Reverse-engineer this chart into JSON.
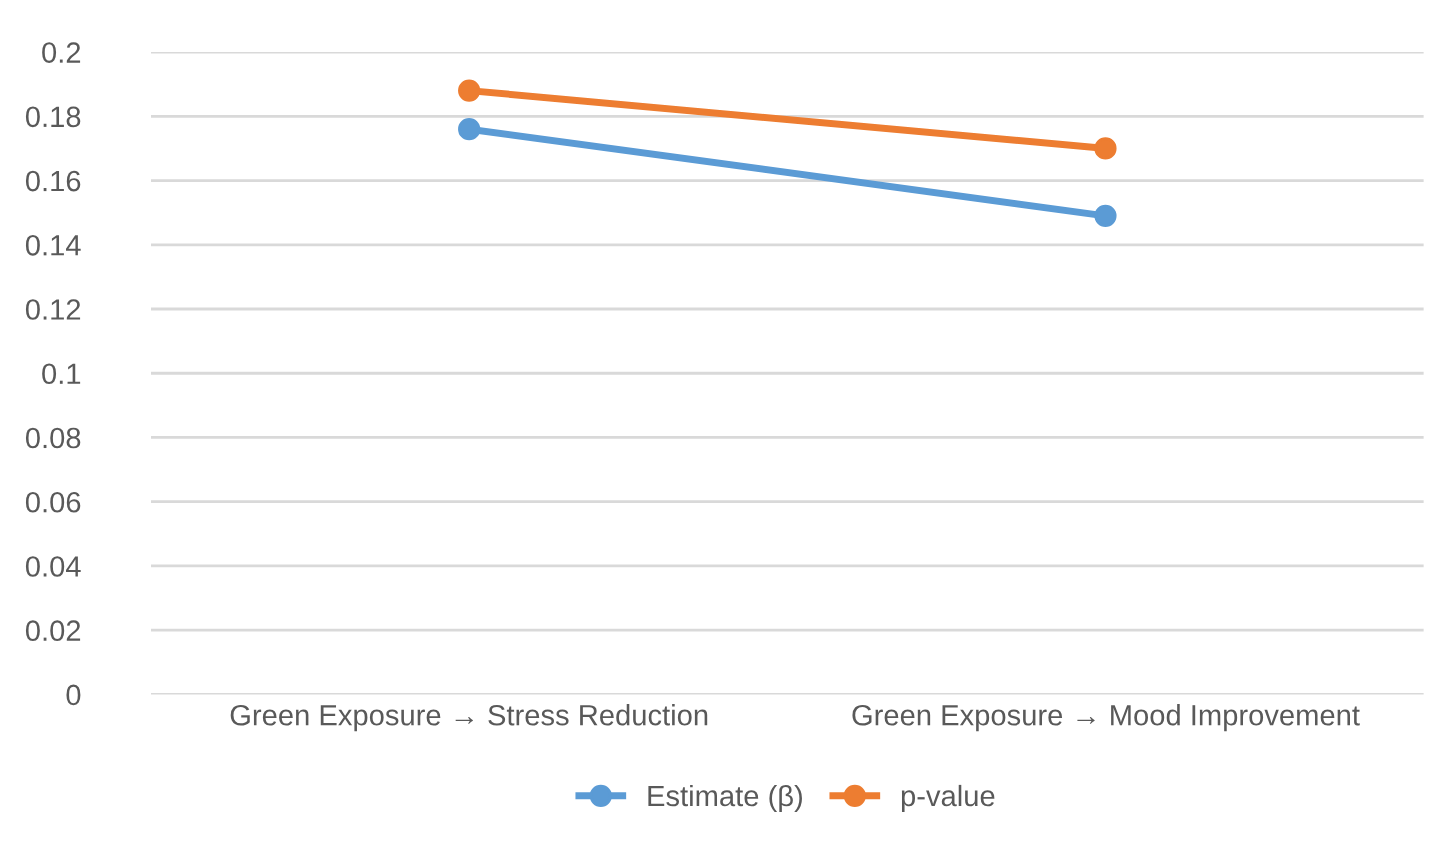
{
  "chart_data": {
    "type": "line",
    "categories": [
      "Green Exposure → Stress Reduction",
      "Green Exposure → Mood Improvement"
    ],
    "series": [
      {
        "name": "Estimate (β)",
        "color": "#5b9bd5",
        "values": [
          0.176,
          0.149
        ]
      },
      {
        "name": "p-value",
        "color": "#ed7d31",
        "values": [
          0.188,
          0.17
        ]
      }
    ],
    "ylim": [
      0,
      0.2
    ],
    "yticks": [
      0,
      0.02,
      0.04,
      0.06,
      0.08,
      0.1,
      0.12,
      0.14,
      0.16,
      0.18,
      0.2
    ],
    "grid": "y",
    "legend": "bottom",
    "marker": "circle",
    "line_style": "solid"
  }
}
